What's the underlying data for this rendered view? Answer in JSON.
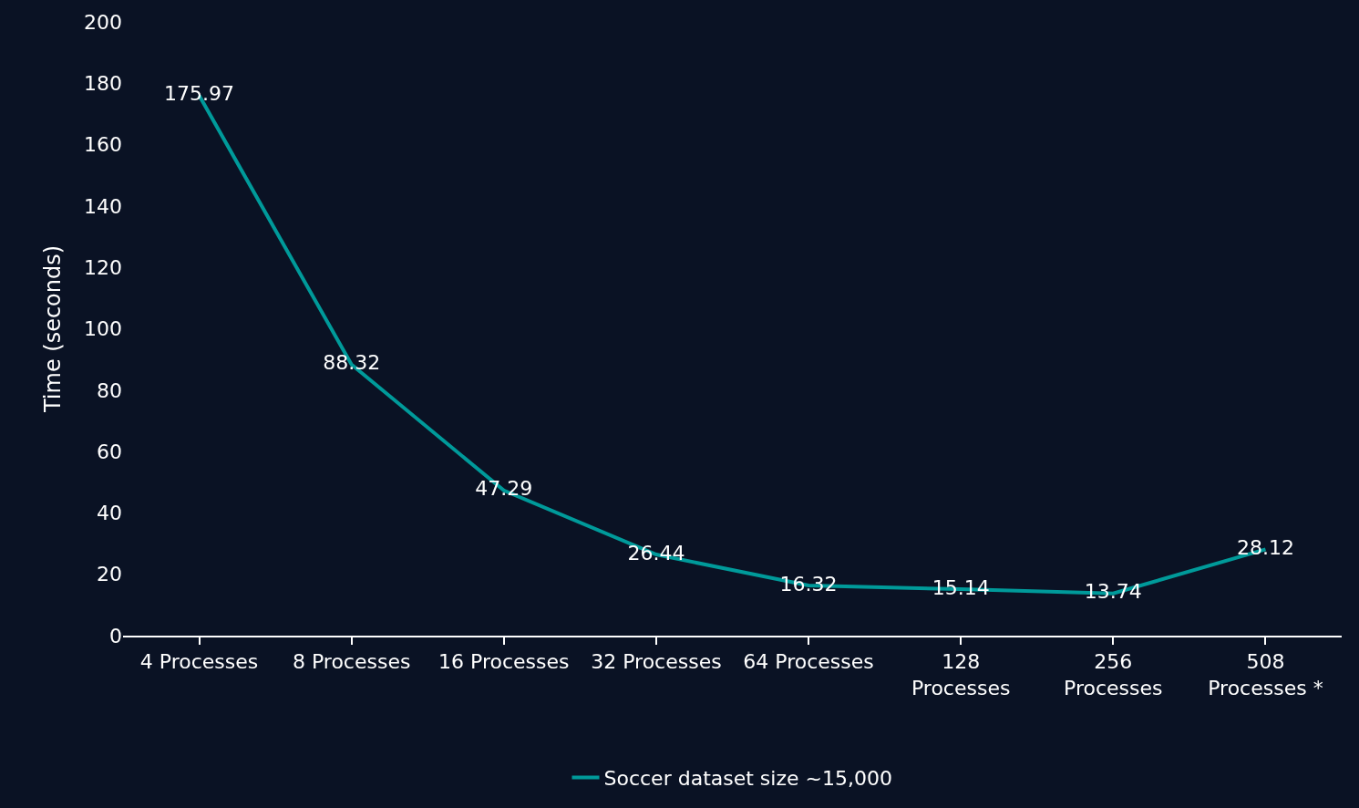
{
  "chart_data": {
    "type": "line",
    "ylabel": "Time (seconds)",
    "categories": [
      "4 Processes",
      "8 Processes",
      "16 Processes",
      "32 Processes",
      "64 Processes",
      "128 Processes",
      "256 Processes",
      "508 Processes *"
    ],
    "series": [
      {
        "name": "Soccer dataset size ~15,000",
        "color": "#009a9a",
        "values": [
          175.97,
          88.32,
          47.29,
          26.44,
          16.32,
          15.14,
          13.74,
          28.12
        ]
      }
    ],
    "ylim": [
      0,
      200
    ],
    "yticks": [
      0,
      20,
      40,
      60,
      80,
      100,
      120,
      140,
      160,
      180,
      200
    ],
    "data_labels": true,
    "legend": "bottom",
    "grid": false,
    "marker": "none",
    "line_style": "solid"
  }
}
